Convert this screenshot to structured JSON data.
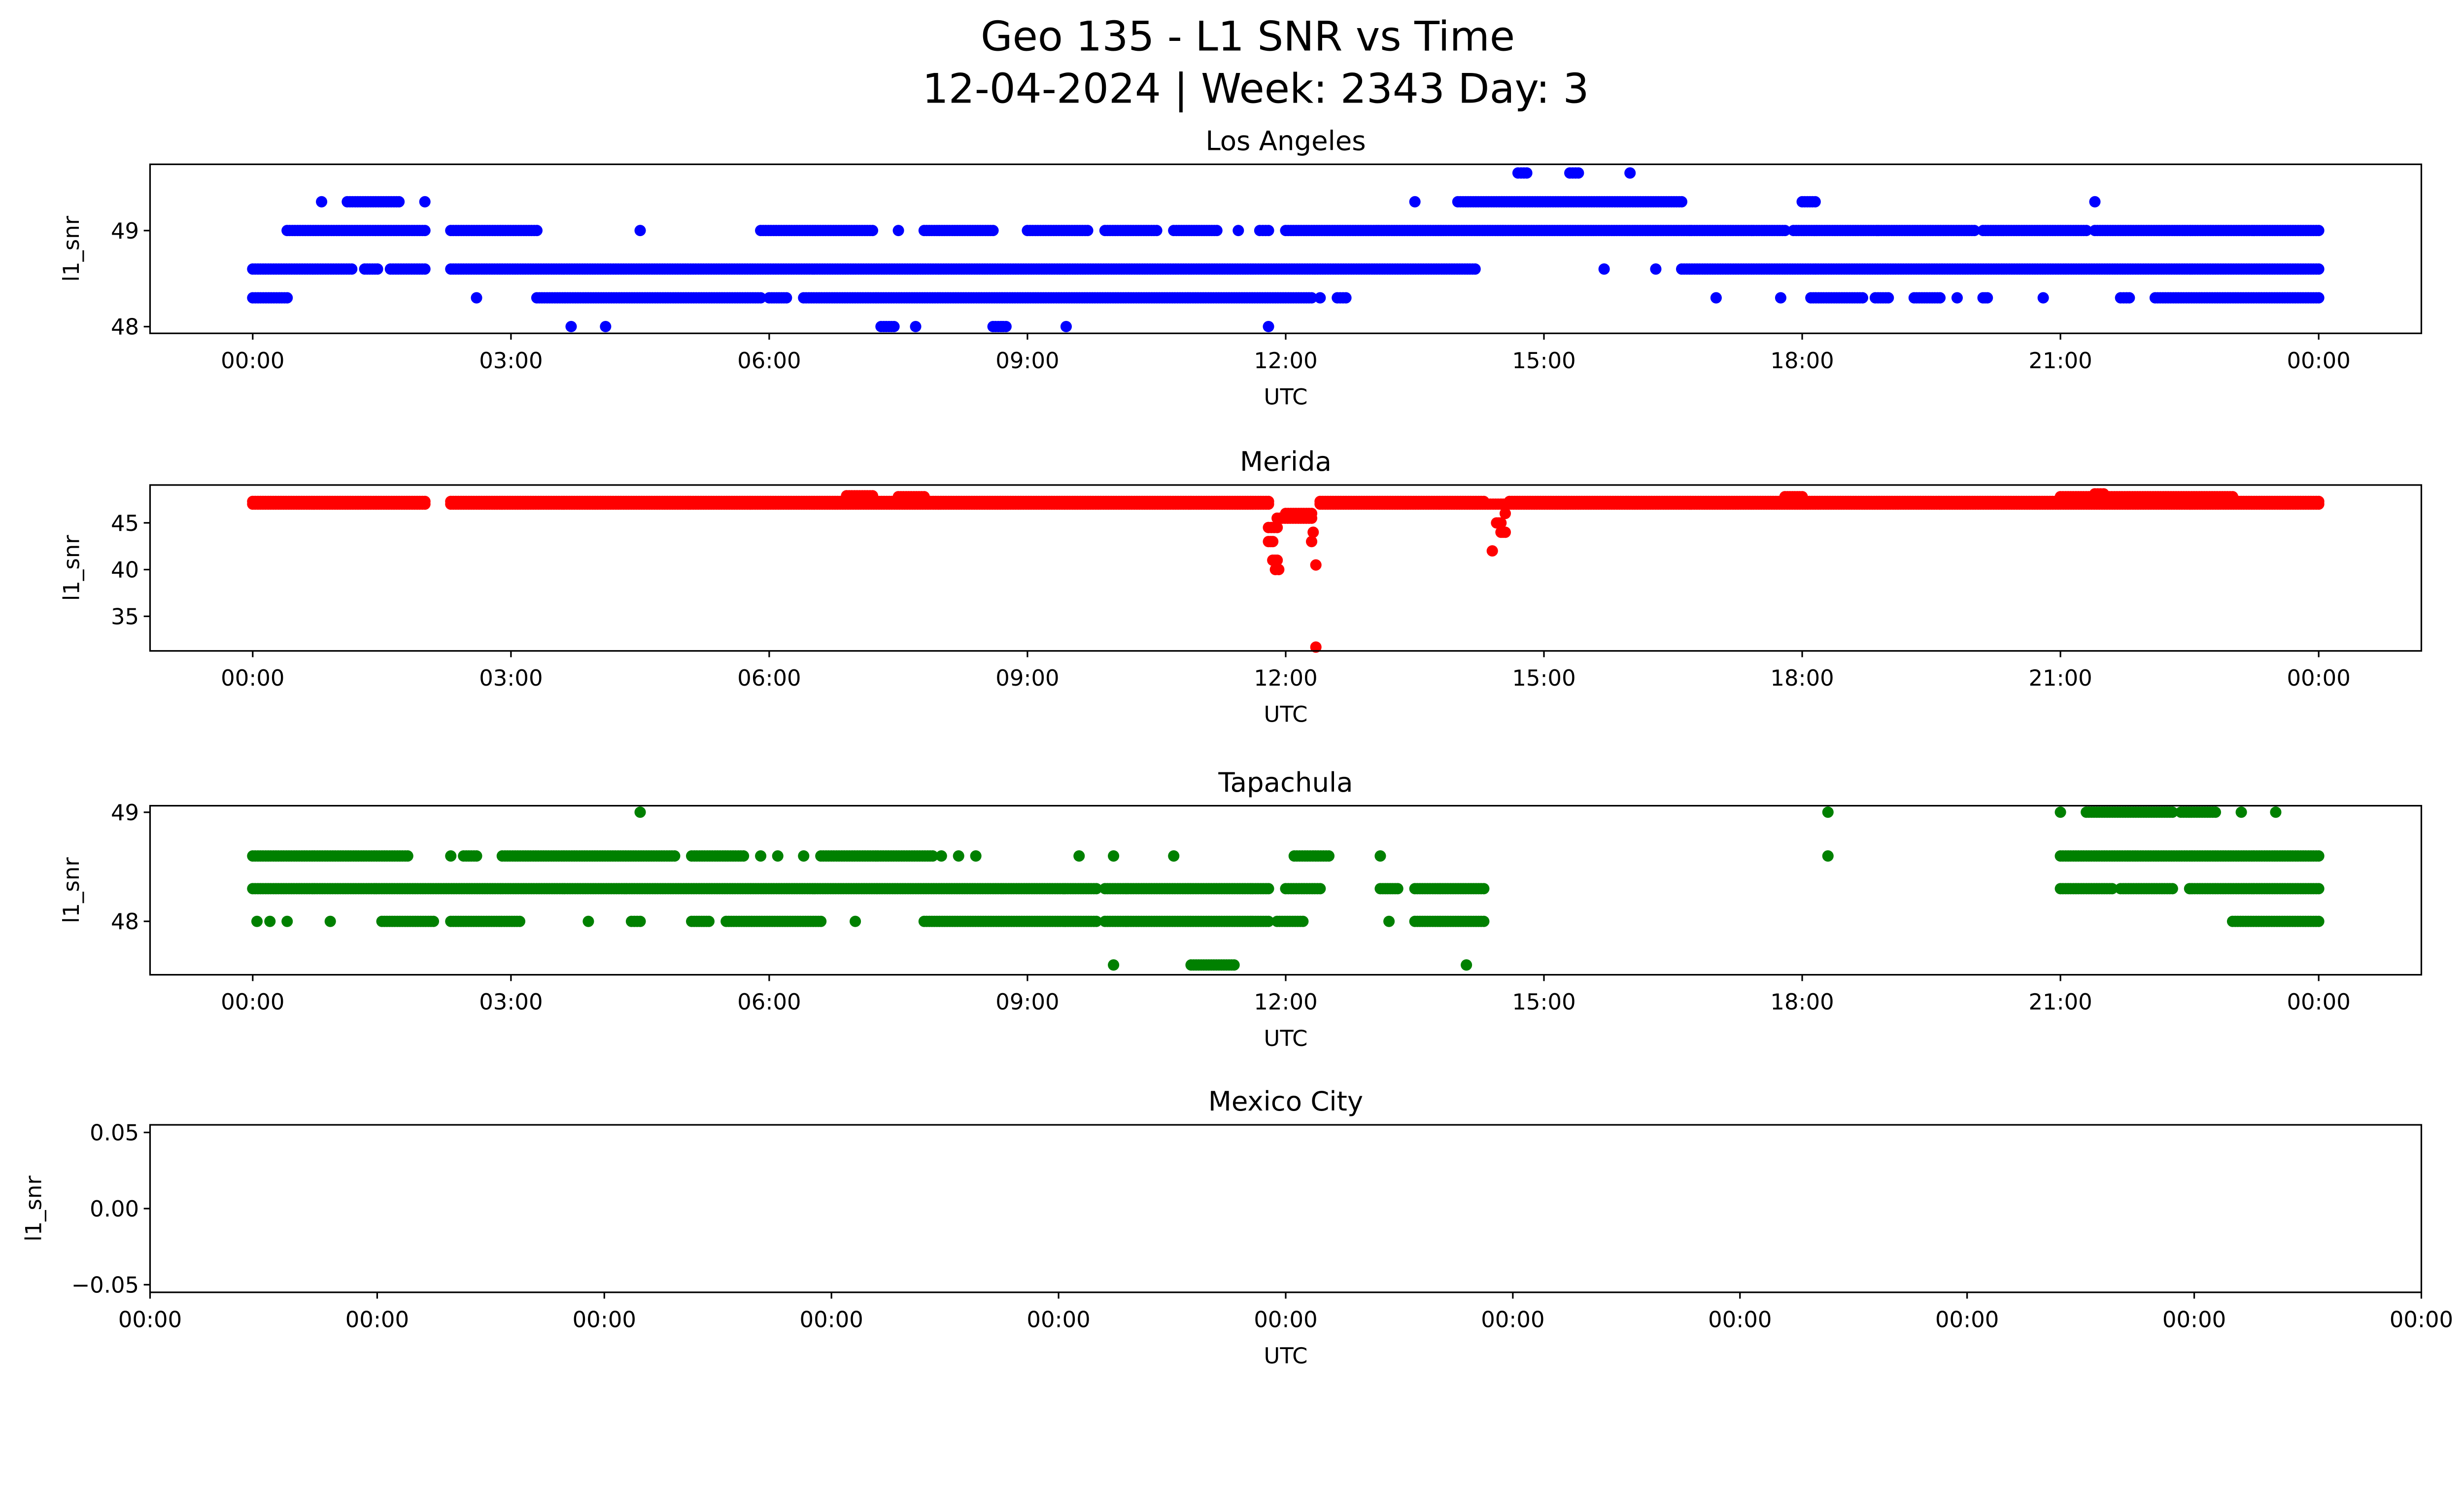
{
  "chart_data": {
    "type": "scatter",
    "title": "Geo 135 - L1 SNR vs Time",
    "subtitle": "12-04-2024 | Week: 2343 Day: 3",
    "x_unit": "hours UTC",
    "x_tick_values": [
      0,
      3,
      6,
      9,
      12,
      15,
      18,
      21,
      24
    ],
    "x_tick_labels": [
      "00:00",
      "03:00",
      "06:00",
      "09:00",
      "12:00",
      "15:00",
      "18:00",
      "21:00",
      "00:00"
    ],
    "xlim": [
      -1.2,
      25.2
    ],
    "panels": [
      {
        "title": "Los Angeles",
        "xlabel": "UTC",
        "ylabel": "l1_snr",
        "color": "#0000ff",
        "ylim": [
          47.93,
          49.69
        ],
        "y_ticks": [
          48,
          49
        ],
        "y_tick_labels": [
          "48",
          "49"
        ],
        "runs": [
          [
            0,
            0.4,
            48.3
          ],
          [
            2.6,
            2.6,
            48.3
          ],
          [
            3.3,
            5.9,
            48.3
          ],
          [
            6.0,
            6.2,
            48.3
          ],
          [
            6.4,
            12.3,
            48.3
          ],
          [
            12.4,
            12.4,
            48.3
          ],
          [
            12.6,
            12.7,
            48.3
          ],
          [
            17.0,
            17.0,
            48.3
          ],
          [
            17.75,
            17.75,
            48.3
          ],
          [
            18.1,
            18.7,
            48.3
          ],
          [
            18.85,
            19.0,
            48.3
          ],
          [
            19.3,
            19.6,
            48.3
          ],
          [
            19.8,
            19.8,
            48.3
          ],
          [
            20.1,
            20.15,
            48.3
          ],
          [
            20.8,
            20.8,
            48.3
          ],
          [
            21.7,
            21.8,
            48.3
          ],
          [
            22.1,
            24,
            48.3
          ],
          [
            0,
            1.15,
            48.6
          ],
          [
            1.3,
            1.45,
            48.6
          ],
          [
            1.6,
            2.0,
            48.6
          ],
          [
            2.3,
            14.2,
            48.6
          ],
          [
            15.7,
            15.7,
            48.6
          ],
          [
            16.3,
            16.3,
            48.6
          ],
          [
            16.6,
            24,
            48.6
          ],
          [
            0.4,
            2.0,
            49.0
          ],
          [
            2.3,
            3.3,
            49.0
          ],
          [
            4.5,
            4.5,
            49.0
          ],
          [
            5.9,
            7.2,
            49.0
          ],
          [
            7.5,
            7.5,
            49.0
          ],
          [
            7.8,
            8.6,
            49.0
          ],
          [
            9.0,
            9.7,
            49.0
          ],
          [
            9.9,
            10.5,
            49.0
          ],
          [
            10.7,
            11.2,
            49.0
          ],
          [
            11.45,
            11.45,
            49.0
          ],
          [
            11.7,
            11.8,
            49.0
          ],
          [
            12.0,
            17.8,
            49.0
          ],
          [
            17.9,
            20.0,
            49.0
          ],
          [
            20.1,
            21.3,
            49.0
          ],
          [
            21.4,
            24,
            49.0
          ],
          [
            0.8,
            0.8,
            49.3
          ],
          [
            1.1,
            1.7,
            49.3
          ],
          [
            2.0,
            2.0,
            49.3
          ],
          [
            13.5,
            13.5,
            49.3
          ],
          [
            14.0,
            16.6,
            49.3
          ],
          [
            18.0,
            18.15,
            49.3
          ],
          [
            21.4,
            21.4,
            49.3
          ],
          [
            14.7,
            14.8,
            49.6
          ],
          [
            15.3,
            15.4,
            49.6
          ],
          [
            16.0,
            16.0,
            49.6
          ],
          [
            3.7,
            3.7,
            48.0
          ],
          [
            4.1,
            4.1,
            48.0
          ],
          [
            7.3,
            7.45,
            48.0
          ],
          [
            7.7,
            7.7,
            48.0
          ],
          [
            8.6,
            8.75,
            48.0
          ],
          [
            9.45,
            9.45,
            48.0
          ],
          [
            11.8,
            11.8,
            48.0
          ]
        ]
      },
      {
        "title": "Merida",
        "xlabel": "UTC",
        "ylabel": "l1_snr",
        "color": "#ff0000",
        "ylim": [
          31.3,
          49.05
        ],
        "y_ticks": [
          35,
          40,
          45
        ],
        "y_tick_labels": [
          "35",
          "40",
          "45"
        ],
        "runs": [
          [
            0,
            2.0,
            47.3
          ],
          [
            2.3,
            11.8,
            47.3
          ],
          [
            12.4,
            14.3,
            47.3
          ],
          [
            14.6,
            24,
            47.3
          ],
          [
            0,
            2.0,
            47.0
          ],
          [
            2.3,
            11.8,
            47.0
          ],
          [
            12.4,
            24,
            47.0
          ],
          [
            6.9,
            7.2,
            47.9
          ],
          [
            7.5,
            7.8,
            47.8
          ],
          [
            17.8,
            18.0,
            47.8
          ],
          [
            21.0,
            23.0,
            47.8
          ],
          [
            21.4,
            21.5,
            48.1
          ],
          [
            11.8,
            11.85,
            43
          ],
          [
            11.85,
            11.9,
            41
          ],
          [
            11.88,
            11.92,
            40
          ],
          [
            11.8,
            11.9,
            44.5
          ],
          [
            11.9,
            12.3,
            45.5
          ],
          [
            12.0,
            12.3,
            46
          ],
          [
            12.3,
            12.3,
            43
          ],
          [
            12.32,
            12.32,
            44
          ],
          [
            12.35,
            12.35,
            40.5
          ],
          [
            12.35,
            12.35,
            31.7
          ],
          [
            14.4,
            14.4,
            42
          ],
          [
            14.45,
            14.5,
            45
          ],
          [
            14.5,
            14.55,
            44
          ],
          [
            14.55,
            14.55,
            46
          ]
        ]
      },
      {
        "title": "Tapachula",
        "xlabel": "UTC",
        "ylabel": "l1_snr",
        "color": "#008000",
        "ylim": [
          47.51,
          49.06
        ],
        "y_ticks": [
          48,
          49
        ],
        "y_tick_labels": [
          "48",
          "49"
        ],
        "runs": [
          [
            0,
            1.8,
            48.6
          ],
          [
            2.3,
            2.3,
            48.6
          ],
          [
            2.45,
            2.6,
            48.6
          ],
          [
            2.9,
            4.9,
            48.6
          ],
          [
            5.1,
            5.7,
            48.6
          ],
          [
            5.9,
            5.9,
            48.6
          ],
          [
            6.1,
            6.1,
            48.6
          ],
          [
            6.4,
            6.4,
            48.6
          ],
          [
            6.6,
            7.9,
            48.6
          ],
          [
            8.0,
            8.0,
            48.6
          ],
          [
            8.2,
            8.2,
            48.6
          ],
          [
            8.4,
            8.4,
            48.6
          ],
          [
            9.6,
            9.6,
            48.6
          ],
          [
            10.0,
            10.0,
            48.6
          ],
          [
            10.7,
            10.7,
            48.6
          ],
          [
            12.1,
            12.5,
            48.6
          ],
          [
            13.1,
            13.1,
            48.6
          ],
          [
            18.3,
            18.3,
            48.6
          ],
          [
            21.0,
            24,
            48.6
          ],
          [
            0,
            9.8,
            48.3
          ],
          [
            9.9,
            11.8,
            48.3
          ],
          [
            12.0,
            12.4,
            48.3
          ],
          [
            13.1,
            13.3,
            48.3
          ],
          [
            13.5,
            14.3,
            48.3
          ],
          [
            21.0,
            21.6,
            48.3
          ],
          [
            21.7,
            22.3,
            48.3
          ],
          [
            22.5,
            24,
            48.3
          ],
          [
            0.05,
            0.05,
            48.0
          ],
          [
            0.2,
            0.2,
            48.0
          ],
          [
            0.4,
            0.4,
            48.0
          ],
          [
            0.9,
            0.9,
            48.0
          ],
          [
            1.5,
            2.1,
            48.0
          ],
          [
            2.3,
            3.1,
            48.0
          ],
          [
            3.9,
            3.9,
            48.0
          ],
          [
            4.4,
            4.5,
            48.0
          ],
          [
            5.1,
            5.3,
            48.0
          ],
          [
            5.5,
            6.6,
            48.0
          ],
          [
            7.0,
            7.0,
            48.0
          ],
          [
            7.8,
            9.8,
            48.0
          ],
          [
            9.9,
            11.8,
            48.0
          ],
          [
            11.9,
            12.2,
            48.0
          ],
          [
            13.2,
            13.2,
            48.0
          ],
          [
            13.5,
            14.3,
            48.0
          ],
          [
            23.0,
            24,
            48.0
          ],
          [
            4.5,
            4.5,
            49.0
          ],
          [
            18.3,
            18.3,
            49.0
          ],
          [
            21.0,
            21.0,
            49.0
          ],
          [
            21.3,
            22.3,
            49.0
          ],
          [
            22.4,
            22.8,
            49.0
          ],
          [
            23.1,
            23.1,
            49.0
          ],
          [
            23.5,
            23.5,
            49.0
          ],
          [
            10.0,
            10.0,
            47.6
          ],
          [
            10.9,
            11.4,
            47.6
          ],
          [
            14.1,
            14.1,
            47.6
          ]
        ]
      },
      {
        "title": "Mexico City",
        "xlabel": "UTC",
        "ylabel": "l1_snr",
        "color": "#000000",
        "ylim": [
          -0.055,
          0.055
        ],
        "y_ticks": [
          -0.05,
          0,
          0.05
        ],
        "y_tick_labels": [
          "−0.05",
          "0.00",
          "0.05"
        ],
        "x_tick_labels": [
          "00:00",
          "00:00",
          "00:00",
          "00:00",
          "00:00",
          "00:00",
          "00:00",
          "00:00",
          "00:00",
          "00:00",
          "00:00"
        ],
        "runs": []
      }
    ]
  }
}
